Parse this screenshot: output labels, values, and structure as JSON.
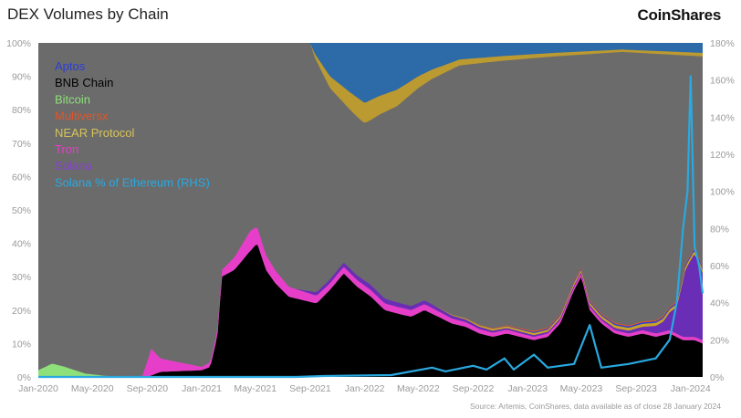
{
  "header": {
    "title": "DEX Volumes by Chain",
    "brand": "CoinShares"
  },
  "footer": {
    "source": "Source: Artemis, CoinShares, data available as of close 28 January 2024"
  },
  "chart_data": {
    "type": "area",
    "stacked": true,
    "x_type": "date",
    "x_ticks": [
      "Jan-2020",
      "May-2020",
      "Sep-2020",
      "Jan-2021",
      "May-2021",
      "Sep-2021",
      "Jan-2022",
      "May-2022",
      "Sep-2022",
      "Jan-2023",
      "May-2023",
      "Sep-2023",
      "Jan-2024"
    ],
    "x_range": [
      "2020-01-01",
      "2024-01-28"
    ],
    "y_left_ticks": [
      "0%",
      "10%",
      "20%",
      "30%",
      "40%",
      "50%",
      "60%",
      "70%",
      "80%",
      "90%",
      "100%"
    ],
    "y_left_range": [
      0,
      100
    ],
    "y_right_ticks": [
      "0%",
      "20%",
      "40%",
      "60%",
      "80%",
      "100%",
      "120%",
      "140%",
      "160%",
      "180%"
    ],
    "y_right_range": [
      0,
      180
    ],
    "legend_position": "top-left",
    "colors": {
      "ethereum_other": "#6b6b6b",
      "aptos": "#2a3ed6",
      "bnb": "#000000",
      "bitcoin": "#8ee07a",
      "multiversx": "#e0552a",
      "near": "#c9a227",
      "tron": "#e63ec8",
      "solana": "#6a2db5",
      "solana_eth": "#29a9e0",
      "top_band": "#2d6aa8"
    },
    "legend": [
      {
        "label": "Aptos",
        "color": "#2a3ed6"
      },
      {
        "label": "BNB Chain",
        "color": "#000000"
      },
      {
        "label": "Bitcoin",
        "color": "#8ee07a"
      },
      {
        "label": "Multiversx",
        "color": "#e0552a"
      },
      {
        "label": "NEAR Protocol",
        "color": "#d8c45a"
      },
      {
        "label": "Tron",
        "color": "#e63ec8"
      },
      {
        "label": "Solana",
        "color": "#8a3fd6"
      },
      {
        "label": "Solana % of Ethereum (RHS)",
        "color": "#29a9e0"
      }
    ],
    "series": [
      {
        "name": "BNB Chain",
        "axis": "left",
        "points": [
          [
            "2020-01-01",
            0
          ],
          [
            "2020-09-01",
            0
          ],
          [
            "2020-10-01",
            1.5
          ],
          [
            "2021-01-01",
            2
          ],
          [
            "2021-01-20",
            3
          ],
          [
            "2021-02-05",
            12
          ],
          [
            "2021-02-15",
            30
          ],
          [
            "2021-03-15",
            32
          ],
          [
            "2021-04-15",
            37
          ],
          [
            "2021-05-05",
            40
          ],
          [
            "2021-05-25",
            32
          ],
          [
            "2021-06-15",
            28
          ],
          [
            "2021-07-15",
            24
          ],
          [
            "2021-08-15",
            23
          ],
          [
            "2021-09-15",
            22
          ],
          [
            "2021-10-15",
            26
          ],
          [
            "2021-11-15",
            31
          ],
          [
            "2021-12-15",
            27
          ],
          [
            "2022-01-15",
            24
          ],
          [
            "2022-02-15",
            20
          ],
          [
            "2022-03-15",
            19
          ],
          [
            "2022-04-15",
            18
          ],
          [
            "2022-05-15",
            20
          ],
          [
            "2022-06-15",
            18
          ],
          [
            "2022-07-15",
            16
          ],
          [
            "2022-08-15",
            15
          ],
          [
            "2022-09-15",
            13
          ],
          [
            "2022-10-15",
            12
          ],
          [
            "2022-11-15",
            13
          ],
          [
            "2022-12-15",
            12
          ],
          [
            "2023-01-15",
            11
          ],
          [
            "2023-02-15",
            12
          ],
          [
            "2023-03-15",
            16
          ],
          [
            "2023-04-15",
            26
          ],
          [
            "2023-05-01",
            30
          ],
          [
            "2023-05-20",
            20
          ],
          [
            "2023-06-15",
            16
          ],
          [
            "2023-07-15",
            13
          ],
          [
            "2023-08-15",
            12
          ],
          [
            "2023-09-15",
            13
          ],
          [
            "2023-10-15",
            12
          ],
          [
            "2023-11-15",
            13
          ],
          [
            "2023-12-15",
            11
          ],
          [
            "2024-01-10",
            11
          ],
          [
            "2024-01-28",
            10
          ]
        ]
      },
      {
        "name": "Tron",
        "axis": "left",
        "points": [
          [
            "2020-01-01",
            0
          ],
          [
            "2020-08-20",
            0
          ],
          [
            "2020-09-10",
            8
          ],
          [
            "2020-10-01",
            4
          ],
          [
            "2020-11-01",
            3
          ],
          [
            "2021-01-01",
            1
          ],
          [
            "2021-02-15",
            2
          ],
          [
            "2021-04-20",
            6
          ],
          [
            "2021-05-05",
            5
          ],
          [
            "2021-07-15",
            3
          ],
          [
            "2021-10-15",
            2
          ],
          [
            "2022-01-15",
            2
          ],
          [
            "2022-04-15",
            2
          ],
          [
            "2022-07-15",
            1.5
          ],
          [
            "2023-01-15",
            1
          ],
          [
            "2023-07-15",
            1
          ],
          [
            "2024-01-28",
            1
          ]
        ]
      },
      {
        "name": "Solana",
        "axis": "left",
        "points": [
          [
            "2020-01-01",
            0
          ],
          [
            "2021-08-01",
            0
          ],
          [
            "2021-09-15",
            1
          ],
          [
            "2022-01-15",
            1.5
          ],
          [
            "2022-06-15",
            1
          ],
          [
            "2022-11-10",
            0.5
          ],
          [
            "2023-06-15",
            0.5
          ],
          [
            "2023-09-15",
            1
          ],
          [
            "2023-11-01",
            3
          ],
          [
            "2023-12-01",
            8
          ],
          [
            "2023-12-20",
            20
          ],
          [
            "2024-01-10",
            25
          ],
          [
            "2024-01-28",
            20
          ]
        ]
      },
      {
        "name": "Bitcoin",
        "axis": "left",
        "points": [
          [
            "2020-01-01",
            2
          ],
          [
            "2020-02-01",
            4
          ],
          [
            "2020-03-01",
            3
          ],
          [
            "2020-04-15",
            1
          ],
          [
            "2020-06-01",
            0.3
          ],
          [
            "2020-08-01",
            0
          ],
          [
            "2024-01-28",
            0
          ]
        ]
      },
      {
        "name": "NEAR Protocol",
        "axis": "left",
        "points": [
          [
            "2020-01-01",
            0
          ],
          [
            "2022-06-01",
            0
          ],
          [
            "2022-10-01",
            0.5
          ],
          [
            "2023-06-01",
            0.8
          ],
          [
            "2024-01-28",
            1
          ]
        ]
      },
      {
        "name": "Aptos",
        "axis": "left",
        "points": [
          [
            "2020-01-01",
            0
          ],
          [
            "2022-10-15",
            0
          ],
          [
            "2023-01-15",
            0.3
          ],
          [
            "2024-01-28",
            0.5
          ]
        ]
      },
      {
        "name": "Multiversx",
        "axis": "left",
        "points": [
          [
            "2020-01-01",
            0
          ],
          [
            "2022-08-01",
            0
          ],
          [
            "2023-01-15",
            0.3
          ],
          [
            "2024-01-28",
            0.3
          ]
        ]
      },
      {
        "name": "Solana % of Ethereum (RHS)",
        "axis": "right",
        "points": [
          [
            "2020-01-01",
            0
          ],
          [
            "2021-08-01",
            0
          ],
          [
            "2021-10-01",
            0.5
          ],
          [
            "2022-03-01",
            1
          ],
          [
            "2022-06-01",
            5
          ],
          [
            "2022-07-01",
            3
          ],
          [
            "2022-09-01",
            6
          ],
          [
            "2022-10-01",
            4
          ],
          [
            "2022-11-10",
            10
          ],
          [
            "2022-12-01",
            4
          ],
          [
            "2023-01-15",
            12
          ],
          [
            "2023-02-15",
            5
          ],
          [
            "2023-04-15",
            7
          ],
          [
            "2023-05-20",
            28
          ],
          [
            "2023-06-15",
            5
          ],
          [
            "2023-08-15",
            7
          ],
          [
            "2023-10-15",
            10
          ],
          [
            "2023-11-15",
            20
          ],
          [
            "2023-12-01",
            40
          ],
          [
            "2023-12-15",
            80
          ],
          [
            "2023-12-25",
            100
          ],
          [
            "2024-01-01",
            162
          ],
          [
            "2024-01-10",
            70
          ],
          [
            "2024-01-20",
            60
          ],
          [
            "2024-01-28",
            45
          ]
        ]
      }
    ],
    "upper_band": {
      "name_hidden": true,
      "points": [
        [
          "2020-01-01",
          100
        ],
        [
          "2021-09-01",
          100
        ],
        [
          "2021-09-10",
          97
        ],
        [
          "2021-10-15",
          90
        ],
        [
          "2021-12-01",
          85
        ],
        [
          "2022-01-01",
          82
        ],
        [
          "2022-02-01",
          84
        ],
        [
          "2022-03-15",
          86
        ],
        [
          "2022-05-01",
          90
        ],
        [
          "2022-06-01",
          92
        ],
        [
          "2022-08-01",
          95
        ],
        [
          "2022-11-01",
          96
        ],
        [
          "2023-03-01",
          97
        ],
        [
          "2023-08-01",
          98
        ],
        [
          "2024-01-28",
          97
        ]
      ]
    }
  }
}
